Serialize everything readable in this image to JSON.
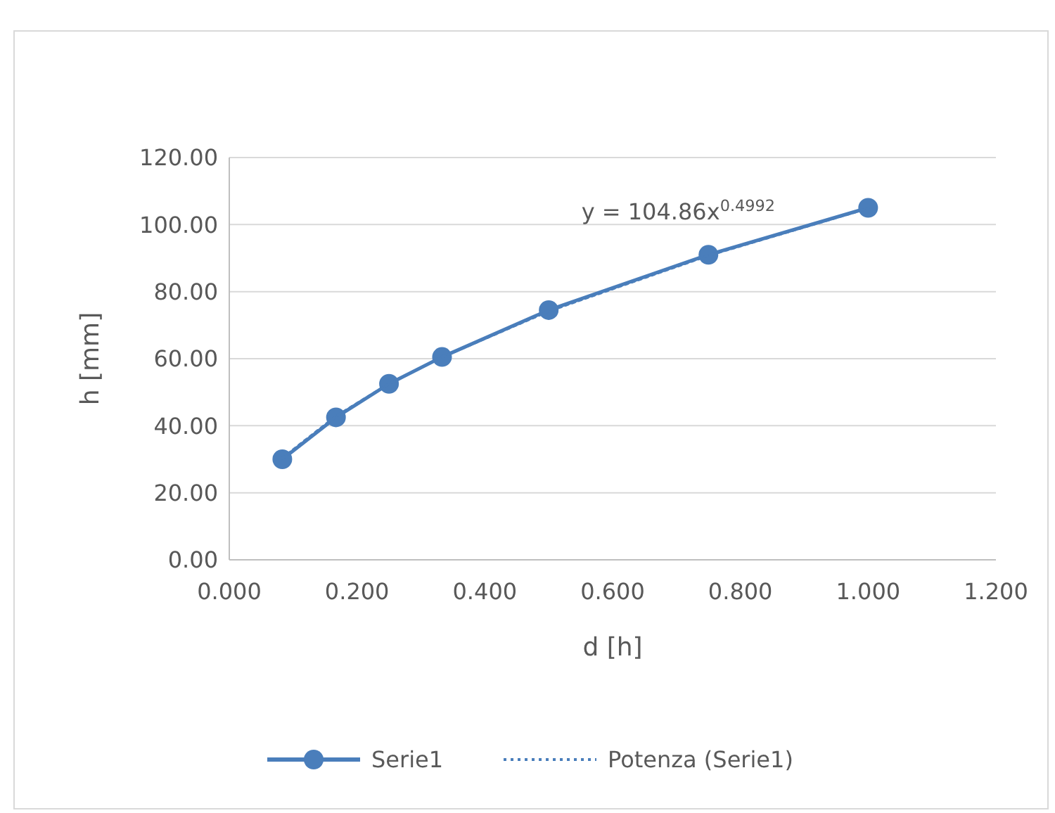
{
  "chart_data": {
    "type": "line",
    "xlabel": "d [h]",
    "ylabel": "h [mm]",
    "xlim": [
      0,
      1.2
    ],
    "xticks": [
      {
        "value": 0,
        "label": "0.000"
      },
      {
        "value": 0.2,
        "label": "0.200"
      },
      {
        "value": 0.4,
        "label": "0.400"
      },
      {
        "value": 0.6,
        "label": "0.600"
      },
      {
        "value": 0.8,
        "label": "0.800"
      },
      {
        "value": 1,
        "label": "1.000"
      },
      {
        "value": 1.2,
        "label": "1.200"
      }
    ],
    "ylim": [
      0,
      120
    ],
    "yticks": [
      {
        "value": 0,
        "label": "0.00"
      },
      {
        "value": 20,
        "label": "20.00"
      },
      {
        "value": 40,
        "label": "40.00"
      },
      {
        "value": 60,
        "label": "60.00"
      },
      {
        "value": 80,
        "label": "80.00"
      },
      {
        "value": 100,
        "label": "100.00"
      },
      {
        "value": 120,
        "label": "120.00"
      }
    ],
    "grid": "y",
    "legend": "bottom",
    "series": [
      {
        "name": "Serie1",
        "color": "#4a7ebb",
        "marker": "circle",
        "line_style": "solid",
        "x": [
          0.083,
          0.167,
          0.25,
          0.333,
          0.5,
          0.75,
          1.0
        ],
        "values": [
          30,
          42.5,
          52.5,
          60.5,
          74.5,
          91,
          105
        ]
      },
      {
        "name": "Potenza (Serie1)",
        "color": "#4a7ebb",
        "type": "line",
        "marker": "none",
        "line_style": "dotted",
        "x": [
          0.083,
          0.167,
          0.25,
          0.333,
          0.5,
          0.75,
          1.0
        ],
        "values": [
          30.3,
          42.8,
          52.5,
          60.5,
          74.2,
          90.8,
          104.9
        ]
      }
    ],
    "annotations": [
      "y = 104.86x$^{0.4992}$"
    ]
  }
}
